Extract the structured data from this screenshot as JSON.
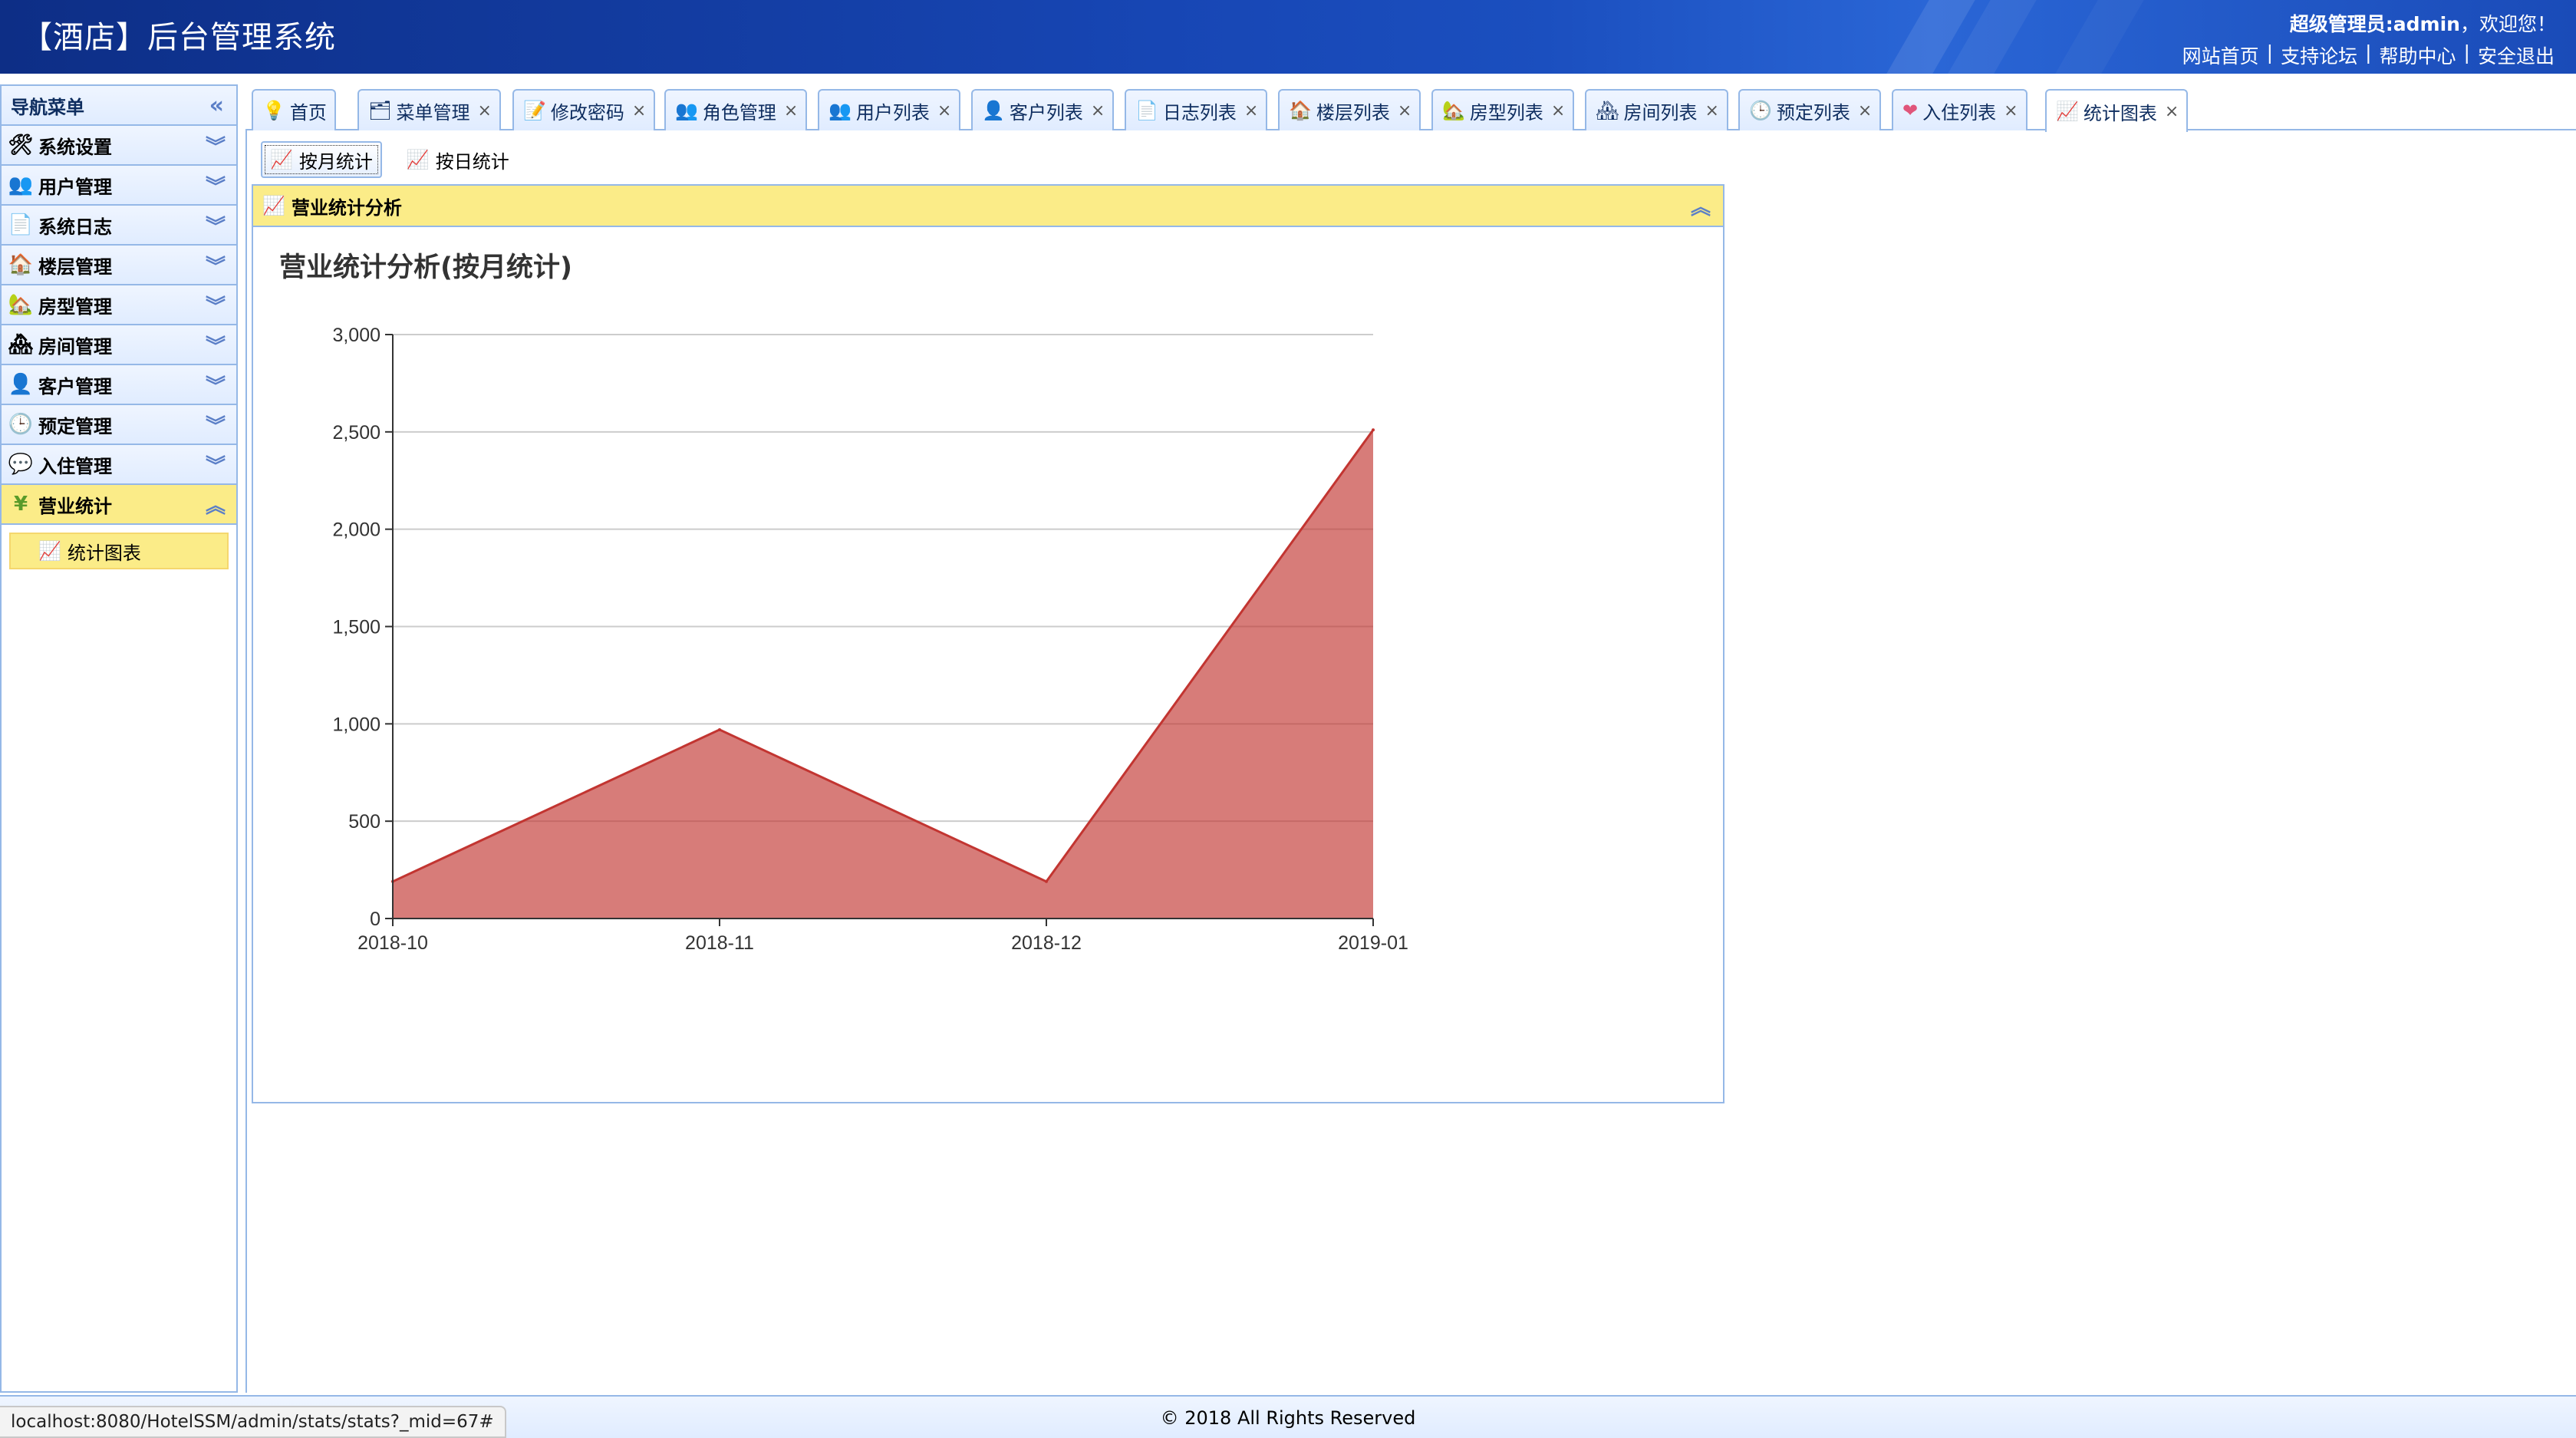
{
  "header": {
    "title": "【酒店】后台管理系统",
    "welcome_prefix": "超级管理员:admin",
    "welcome_suffix": "，欢迎您！",
    "links": [
      "网站首页",
      "支持论坛",
      "帮助中心",
      "安全退出"
    ]
  },
  "sidebar": {
    "title": "导航菜单",
    "items": [
      {
        "label": "系统设置",
        "icon": "tools-icon"
      },
      {
        "label": "用户管理",
        "icon": "users-icon"
      },
      {
        "label": "系统日志",
        "icon": "log-icon"
      },
      {
        "label": "楼层管理",
        "icon": "building-icon"
      },
      {
        "label": "房型管理",
        "icon": "house-icon"
      },
      {
        "label": "房间管理",
        "icon": "room-icon"
      },
      {
        "label": "客户管理",
        "icon": "customer-icon"
      },
      {
        "label": "预定管理",
        "icon": "clock-icon"
      },
      {
        "label": "入住管理",
        "icon": "checkin-icon"
      },
      {
        "label": "营业统计",
        "icon": "yen-icon"
      }
    ],
    "sub_item": "统计图表"
  },
  "tabs": [
    {
      "label": "首页",
      "icon": "bulb-icon",
      "closable": false
    },
    {
      "label": "菜单管理",
      "icon": "tree-icon",
      "closable": true
    },
    {
      "label": "修改密码",
      "icon": "edit-icon",
      "closable": true
    },
    {
      "label": "角色管理",
      "icon": "role-icon",
      "closable": true
    },
    {
      "label": "用户列表",
      "icon": "users-icon",
      "closable": true
    },
    {
      "label": "客户列表",
      "icon": "customer-icon",
      "closable": true
    },
    {
      "label": "日志列表",
      "icon": "log-icon",
      "closable": true
    },
    {
      "label": "楼层列表",
      "icon": "building-icon",
      "closable": true
    },
    {
      "label": "房型列表",
      "icon": "house-icon",
      "closable": true
    },
    {
      "label": "房间列表",
      "icon": "room-icon",
      "closable": true
    },
    {
      "label": "预定列表",
      "icon": "clock-icon",
      "closable": true
    },
    {
      "label": "入住列表",
      "icon": "heart-icon",
      "closable": true
    },
    {
      "label": "统计图表",
      "icon": "chart-icon",
      "closable": true
    }
  ],
  "toolbar": {
    "monthly": "按月统计",
    "daily": "按日统计"
  },
  "panel": {
    "title": "营业统计分析"
  },
  "chart_data": {
    "type": "area",
    "title": "营业统计分析(按月统计)",
    "categories": [
      "2018-10",
      "2018-11",
      "2018-12",
      "2019-01"
    ],
    "values": [
      190,
      970,
      190,
      2510
    ],
    "y_ticks": [
      0,
      500,
      1000,
      1500,
      2000,
      2500,
      3000
    ],
    "y_tick_labels": [
      "0",
      "500",
      "1,000",
      "1,500",
      "2,000",
      "2,500",
      "3,000"
    ],
    "ylim": [
      0,
      3000
    ],
    "grid": true,
    "fill_color": "#c23531",
    "legend": "none"
  },
  "footer": {
    "copyright": "© 2018 All Rights Reserved"
  },
  "status_url": "localhost:8080/HotelSSM/admin/stats/stats?_mid=67#"
}
